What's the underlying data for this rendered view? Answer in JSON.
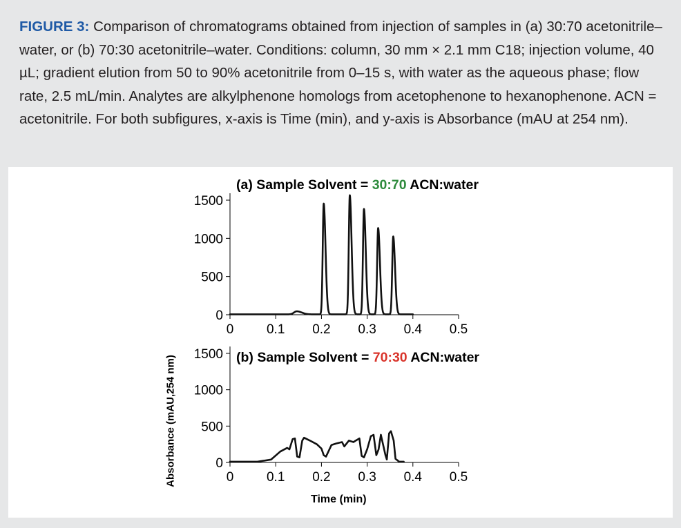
{
  "caption": {
    "lead": "FIGURE 3:",
    "text": " Comparison of chromatograms obtained from injection of samples in (a) 30:70 acetonitrile–water, or (b) 70:30 acetonitrile–water. Conditions: column, 30 mm × 2.1 mm C18; injection volume, 40 µL; gradient elution from 50 to 90% acetonitrile from 0–15 s, with water as the aqueous phase; flow rate, 2.5 mL/min. Analytes are alkylphenone homologs from acetophenone to hexanophenone. ACN = acetonitrile. For both subfigures, x-axis is Time (min), and y-axis is Absorbance (mAU at 254 nm)."
  },
  "chart_data": [
    {
      "type": "line",
      "panel": "(a)",
      "title_prefix": "Sample Solvent = ",
      "title_highlight": "30:70",
      "title_suffix": " ACN:water",
      "highlight_color": "#2e8b3d",
      "xlim": [
        0,
        0.5
      ],
      "ylim": [
        0,
        1500
      ],
      "xticks": [
        "0",
        "0.1",
        "0.2",
        "0.3",
        "0.4",
        "0.5"
      ],
      "yticks": [
        "0",
        "500",
        "1000",
        "1500"
      ],
      "baseline": 5,
      "peaks": [
        {
          "t": 0.146,
          "h": 40,
          "w": 0.006
        },
        {
          "t": 0.205,
          "h": 1450,
          "w": 0.0022
        },
        {
          "t": 0.262,
          "h": 1560,
          "w": 0.0022
        },
        {
          "t": 0.293,
          "h": 1380,
          "w": 0.0022
        },
        {
          "t": 0.324,
          "h": 1130,
          "w": 0.0022
        },
        {
          "t": 0.357,
          "h": 1020,
          "w": 0.0022
        }
      ],
      "series": [
        {
          "values": [
            [
              0.0,
              5
            ],
            [
              0.05,
              5
            ],
            [
              0.12,
              5
            ],
            [
              0.14,
              30
            ],
            [
              0.146,
              40
            ],
            [
              0.155,
              25
            ],
            [
              0.165,
              10
            ],
            [
              0.175,
              5
            ],
            [
              0.195,
              5
            ],
            [
              0.2,
              100
            ],
            [
              0.202,
              900
            ],
            [
              0.205,
              1450
            ],
            [
              0.208,
              900
            ],
            [
              0.212,
              300
            ],
            [
              0.22,
              60
            ],
            [
              0.23,
              15
            ],
            [
              0.25,
              10
            ],
            [
              0.258,
              150
            ],
            [
              0.262,
              1560
            ],
            [
              0.266,
              150
            ],
            [
              0.273,
              15
            ],
            [
              0.285,
              10
            ],
            [
              0.289,
              150
            ],
            [
              0.293,
              1380
            ],
            [
              0.297,
              150
            ],
            [
              0.304,
              15
            ],
            [
              0.318,
              10
            ],
            [
              0.321,
              150
            ],
            [
              0.324,
              1130
            ],
            [
              0.328,
              120
            ],
            [
              0.335,
              12
            ],
            [
              0.35,
              10
            ],
            [
              0.354,
              150
            ],
            [
              0.357,
              1020
            ],
            [
              0.361,
              100
            ],
            [
              0.368,
              10
            ],
            [
              0.38,
              5
            ]
          ]
        }
      ]
    },
    {
      "type": "line",
      "panel": "(b)",
      "title_prefix": "Sample Solvent = ",
      "title_highlight": "70:30",
      "title_suffix": " ACN:water",
      "highlight_color": "#d9342b",
      "xlim": [
        0,
        0.5
      ],
      "ylim": [
        0,
        1500
      ],
      "xticks": [
        "0",
        "0.1",
        "0.2",
        "0.3",
        "0.4",
        "0.5"
      ],
      "yticks": [
        "0",
        "500",
        "1000",
        "1500"
      ],
      "xlabel": "Time (min)",
      "ylabel": "Absorbance (mAU,254 nm)",
      "series": [
        {
          "values": [
            [
              0.0,
              10
            ],
            [
              0.06,
              10
            ],
            [
              0.09,
              40
            ],
            [
              0.11,
              150
            ],
            [
              0.125,
              200
            ],
            [
              0.13,
              180
            ],
            [
              0.137,
              320
            ],
            [
              0.142,
              330
            ],
            [
              0.147,
              80
            ],
            [
              0.152,
              70
            ],
            [
              0.158,
              300
            ],
            [
              0.162,
              340
            ],
            [
              0.175,
              300
            ],
            [
              0.19,
              250
            ],
            [
              0.2,
              190
            ],
            [
              0.205,
              100
            ],
            [
              0.21,
              80
            ],
            [
              0.222,
              240
            ],
            [
              0.232,
              260
            ],
            [
              0.245,
              280
            ],
            [
              0.25,
              220
            ],
            [
              0.26,
              300
            ],
            [
              0.27,
              280
            ],
            [
              0.275,
              300
            ],
            [
              0.283,
              330
            ],
            [
              0.288,
              90
            ],
            [
              0.293,
              70
            ],
            [
              0.3,
              180
            ],
            [
              0.308,
              360
            ],
            [
              0.314,
              380
            ],
            [
              0.32,
              100
            ],
            [
              0.325,
              180
            ],
            [
              0.33,
              380
            ],
            [
              0.34,
              100
            ],
            [
              0.343,
              40
            ],
            [
              0.348,
              400
            ],
            [
              0.352,
              430
            ],
            [
              0.358,
              300
            ],
            [
              0.362,
              50
            ],
            [
              0.37,
              10
            ],
            [
              0.38,
              10
            ]
          ]
        }
      ]
    }
  ]
}
